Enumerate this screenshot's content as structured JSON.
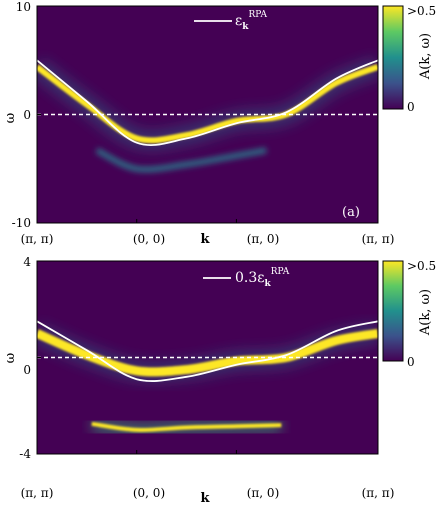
{
  "chart_data": [
    {
      "type": "heatmap",
      "panel_label": "(a)",
      "xlabel": "k",
      "ylabel": "ω",
      "ylim": [
        -10,
        10
      ],
      "yticks": [
        "10",
        "0",
        "-10"
      ],
      "xticks": [
        "(π, π)",
        "(0, 0)",
        "(π, 0)",
        "(π, π)"
      ],
      "colorbar": {
        "label": "A(k, ω)",
        "ticks": [
          ">0.5",
          "0"
        ],
        "range": [
          0,
          0.5
        ]
      },
      "legend": {
        "entry": "ε",
        "sub": "k",
        "sup": "RPA",
        "placement": "top-center"
      },
      "fermi_level": 0,
      "rpa_curve": {
        "k": [
          0,
          0.5,
          1.0,
          1.5,
          2.0,
          2.5,
          3.0,
          3.42
        ],
        "omega": [
          5.0,
          1.2,
          -2.6,
          -2.2,
          -0.8,
          0.2,
          3.3,
          5.0
        ]
      },
      "bright_band": {
        "k": [
          0,
          0.5,
          1.0,
          1.5,
          2.0,
          2.5,
          3.0,
          3.42
        ],
        "omega": [
          4.4,
          0.9,
          -2.2,
          -1.9,
          -0.6,
          0.0,
          2.9,
          4.4
        ]
      },
      "shadow_band": {
        "k": [
          0.6,
          1.0,
          1.5,
          2.0,
          2.3
        ],
        "omega": [
          -3.3,
          -5.0,
          -4.6,
          -3.8,
          -3.3
        ]
      },
      "flat_band_omega": 8.0
    },
    {
      "type": "heatmap",
      "panel_label": "(b)",
      "xlabel": "k",
      "ylabel": "ω",
      "ylim": [
        -4,
        4
      ],
      "yticks": [
        "4",
        "0",
        "-4"
      ],
      "xticks": [
        "(π, π)",
        "(0, 0)",
        "(π, 0)",
        "(π, π)"
      ],
      "colorbar": {
        "label": "A(k, ω)",
        "ticks": [
          ">0.5",
          "0"
        ],
        "range": [
          0,
          0.5
        ]
      },
      "legend": {
        "entry": "0.3ε",
        "sub": "k",
        "sup": "RPA",
        "placement": "top-center"
      },
      "fermi_level": 0,
      "rpa_curve": {
        "k": [
          0,
          0.5,
          1.0,
          1.5,
          2.0,
          2.5,
          3.0,
          3.42
        ],
        "omega": [
          1.5,
          0.3,
          -0.9,
          -0.8,
          -0.3,
          0.1,
          1.1,
          1.5
        ]
      },
      "bright_band": {
        "k": [
          0,
          0.5,
          1.0,
          1.5,
          2.0,
          2.5,
          3.0,
          3.42
        ],
        "omega": [
          1.0,
          0.1,
          -0.55,
          -0.5,
          -0.15,
          0.0,
          0.7,
          1.0
        ]
      },
      "lower_band": {
        "k": [
          0.55,
          1.0,
          1.5,
          2.0,
          2.45
        ],
        "omega": [
          -2.75,
          -3.0,
          -2.9,
          -2.85,
          -2.8
        ]
      },
      "flat_band_omega": 3.2
    }
  ]
}
